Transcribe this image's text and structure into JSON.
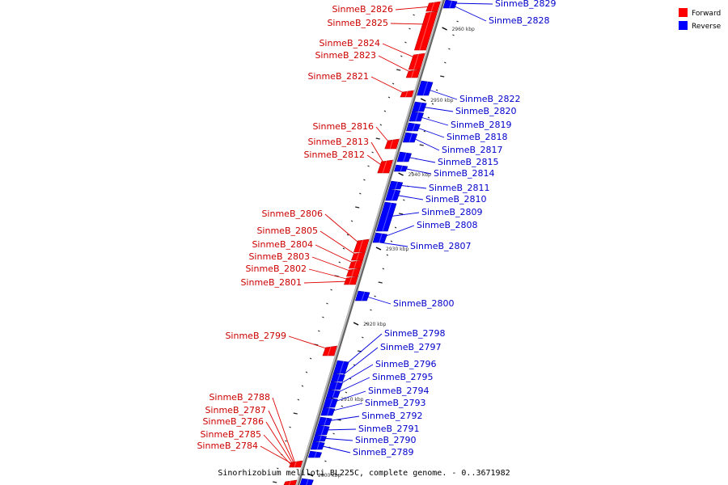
{
  "caption": "Sinorhizobium meliloti BL225C, complete genome. - 0..3671982",
  "legend": [
    {
      "label": "Forward",
      "color": "#ff0000"
    },
    {
      "label": "Reverse",
      "color": "#0000ff"
    }
  ],
  "colors": {
    "forward": "#ff0000",
    "reverse": "#0000ff",
    "backbone": "#999999"
  },
  "scale_labels": [
    "2960 kbp",
    "2950 kbp",
    "2940 kbp",
    "2930 kbp",
    "2920 kbp",
    "2910 kbp",
    "2900 kbp"
  ],
  "forward_genes": [
    "SinmeB_2826",
    "SinmeB_2825",
    "SinmeB_2824",
    "SinmeB_2823",
    "SinmeB_2821",
    "SinmeB_2816",
    "SinmeB_2813",
    "SinmeB_2812",
    "SinmeB_2806",
    "SinmeB_2805",
    "SinmeB_2804",
    "SinmeB_2803",
    "SinmeB_2802",
    "SinmeB_2801",
    "SinmeB_2799",
    "SinmeB_2788",
    "SinmeB_2787",
    "SinmeB_2786",
    "SinmeB_2785",
    "SinmeB_2784"
  ],
  "reverse_genes": [
    "SinmeB_2829",
    "SinmeB_2828",
    "SinmeB_2822",
    "SinmeB_2820",
    "SinmeB_2819",
    "SinmeB_2818",
    "SinmeB_2817",
    "SinmeB_2815",
    "SinmeB_2814",
    "SinmeB_2811",
    "SinmeB_2810",
    "SinmeB_2809",
    "SinmeB_2808",
    "SinmeB_2807",
    "SinmeB_2800",
    "SinmeB_2798",
    "SinmeB_2797",
    "SinmeB_2796",
    "SinmeB_2795",
    "SinmeB_2794",
    "SinmeB_2793",
    "SinmeB_2792",
    "SinmeB_2791",
    "SinmeB_2790",
    "SinmeB_2789"
  ]
}
